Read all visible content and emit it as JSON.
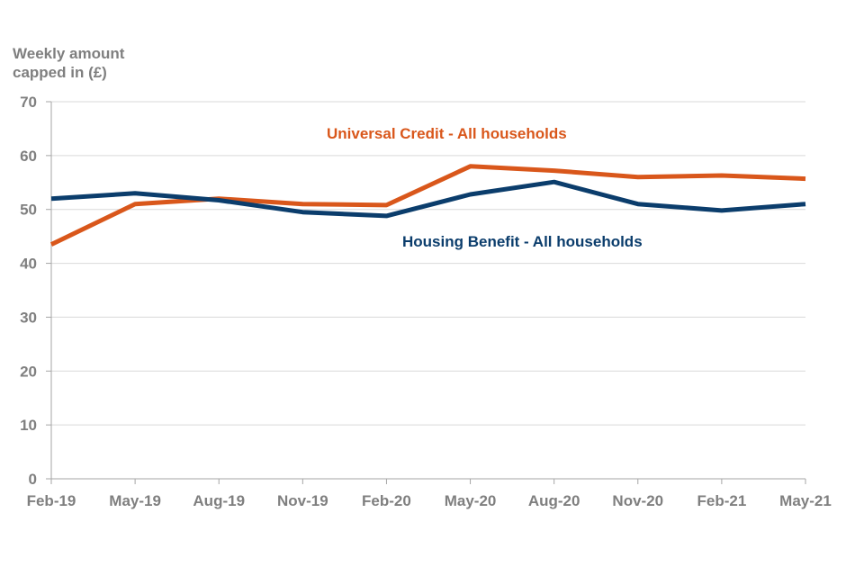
{
  "chart_data": {
    "type": "line",
    "title": "",
    "xlabel": "",
    "ylabel": "Weekly amount\ncapped in (£)",
    "ylim": [
      0,
      70
    ],
    "yticks": [
      0,
      10,
      20,
      30,
      40,
      50,
      60,
      70
    ],
    "grid": true,
    "legend": "inline labels",
    "categories": [
      "Feb-19",
      "May-19",
      "Aug-19",
      "Nov-19",
      "Feb-20",
      "May-20",
      "Aug-20",
      "Nov-20",
      "Feb-21",
      "May-21"
    ],
    "series": [
      {
        "name": "Universal Credit - All households",
        "color": "#d9571b",
        "values": [
          43.5,
          51,
          52,
          51,
          50.8,
          58,
          57.2,
          56,
          56.3,
          55.7
        ]
      },
      {
        "name": "Housing Benefit - All households",
        "color": "#0b3d6c",
        "values": [
          52,
          53,
          51.7,
          49.5,
          48.8,
          52.8,
          55.1,
          51,
          49.8,
          51
        ]
      }
    ]
  }
}
